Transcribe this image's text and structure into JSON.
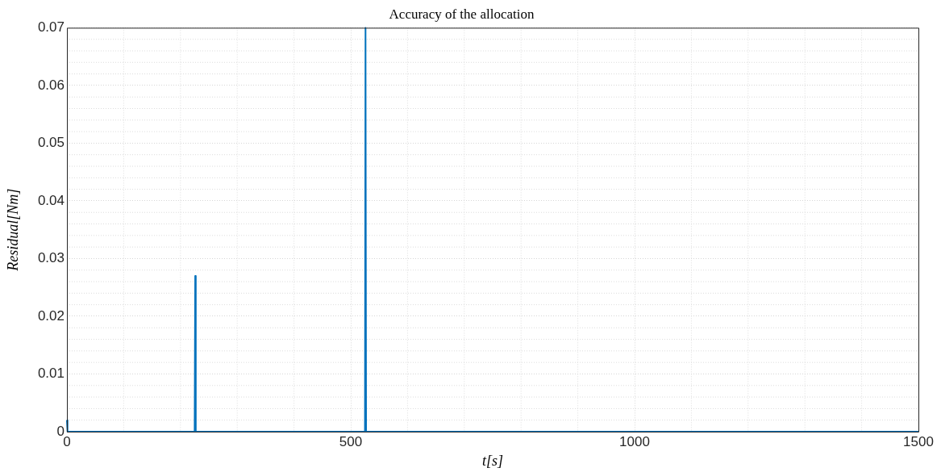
{
  "chart_data": {
    "type": "line",
    "title": "Accuracy of the allocation",
    "xlabel": "t[s]",
    "ylabel": "Residual[Nm]",
    "series": [
      {
        "color": "#0072bd",
        "x": [
          0,
          1,
          225,
          226,
          227,
          525,
          526,
          527,
          1500
        ],
        "values": [
          0.002,
          0,
          0,
          0.027,
          0,
          0,
          0.07,
          0,
          0
        ]
      }
    ],
    "xlim": [
      0,
      1500
    ],
    "xticks": [
      0,
      500,
      1000,
      1500
    ],
    "ylim": [
      0,
      0.07
    ],
    "yticks": [
      0,
      0.01,
      0.02,
      0.03,
      0.04,
      0.05,
      0.06,
      0.07
    ],
    "grid": true,
    "legend": false,
    "marker": "none",
    "line_style": "solid"
  }
}
